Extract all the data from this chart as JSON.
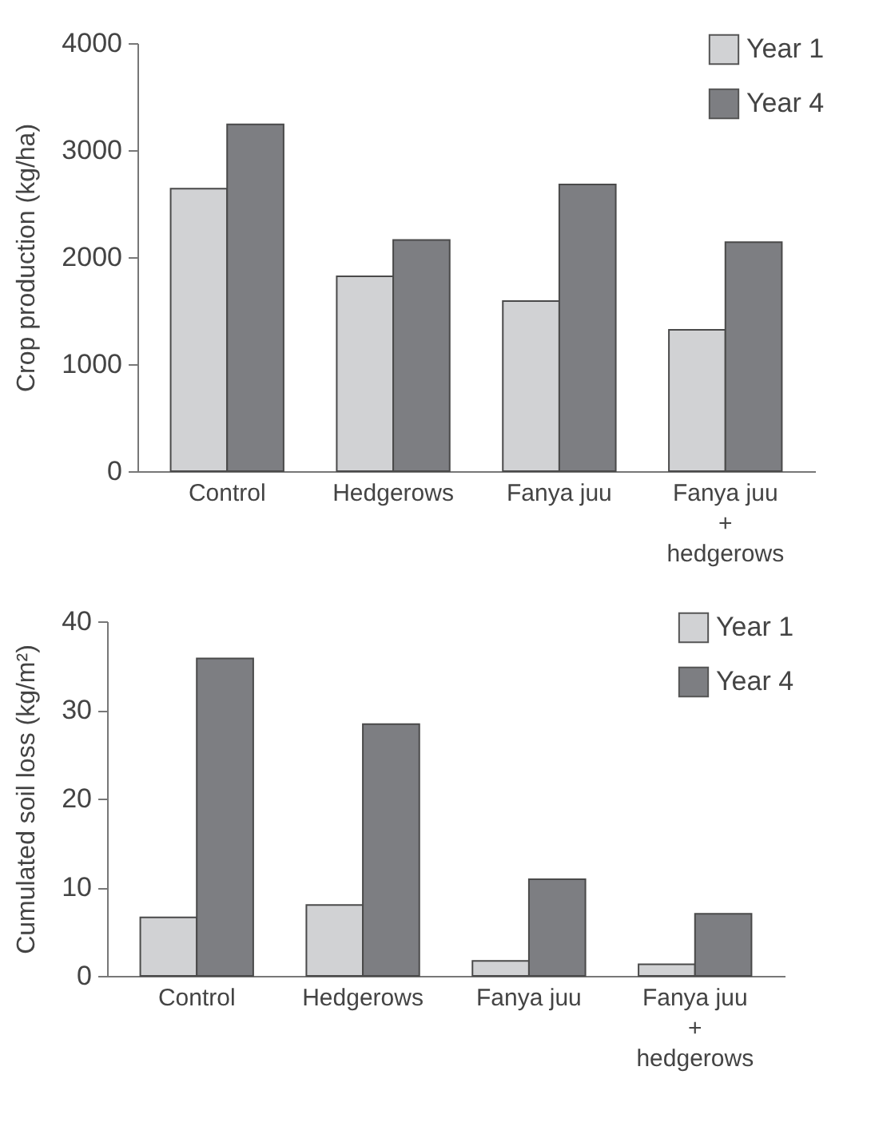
{
  "chart_data": [
    {
      "type": "bar",
      "ylabel": "Crop production (kg/ha)",
      "categories": [
        "Control",
        "Hedgerows",
        "Fanya juu",
        "Fanya juu\n+\nhedgerows"
      ],
      "series": [
        {
          "name": "Year 1",
          "color": "#d1d2d4",
          "values": [
            2640,
            1820,
            1590,
            1320
          ]
        },
        {
          "name": "Year 4",
          "color": "#7d7e82",
          "values": [
            3240,
            2160,
            2680,
            2140
          ]
        }
      ],
      "ylim": [
        0,
        4000
      ],
      "yticks": [
        0,
        1000,
        2000,
        3000,
        4000
      ],
      "legend": "top right",
      "grid": false
    },
    {
      "type": "bar",
      "ylabel": "Cumulated soil loss (kg/m²)",
      "categories": [
        "Control",
        "Hedgerows",
        "Fanya juu",
        "Fanya juu\n+\nhedgerows"
      ],
      "series": [
        {
          "name": "Year 1",
          "color": "#d1d2d4",
          "values": [
            6.6,
            8.0,
            1.7,
            1.3
          ]
        },
        {
          "name": "Year 4",
          "color": "#7d7e82",
          "values": [
            35.8,
            28.4,
            10.9,
            7.0
          ]
        }
      ],
      "ylim": [
        0,
        40
      ],
      "yticks": [
        0,
        10,
        20,
        30,
        40
      ],
      "legend": "top right",
      "grid": false
    }
  ]
}
